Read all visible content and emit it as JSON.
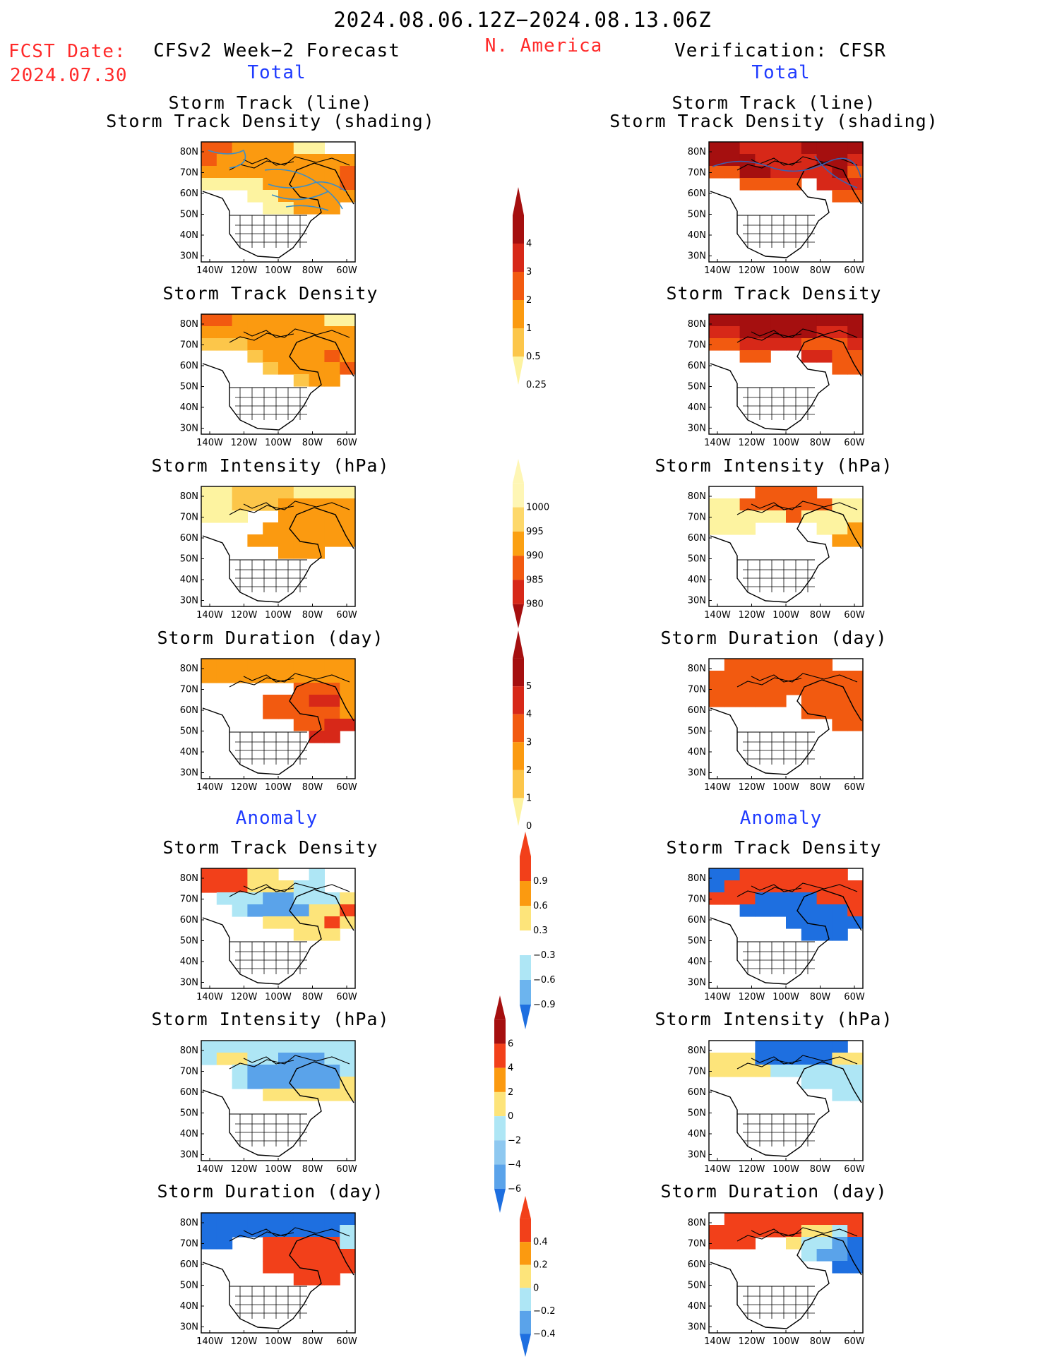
{
  "header": {
    "date_range": "2024.08.06.12Z−2024.08.13.06Z",
    "fcst_label": "FCST Date:",
    "fcst_date": "2024.07.30",
    "forecast_title": "CFSv2 Week−2 Forecast",
    "region": "N. America",
    "verification_title": "Verification: CFSR"
  },
  "sections": {
    "total": "Total",
    "anomaly": "Anomaly"
  },
  "panel_titles": {
    "track_line": "Storm Track (line)",
    "track_shading": "Storm Track Density (shading)",
    "density": "Storm Track Density",
    "intensity": "Storm Intensity (hPa)",
    "duration": "Storm Duration (day)"
  },
  "axes": {
    "lat_labels": [
      "80N",
      "70N",
      "60N",
      "50N",
      "40N",
      "30N"
    ],
    "lon_labels": [
      "140W",
      "120W",
      "100W",
      "80W",
      "60W"
    ]
  },
  "chart_data": {
    "type": "heatmap",
    "colorbars": [
      {
        "id": "density_total",
        "labels": [
          "4",
          "3",
          "2",
          "1",
          "0.5",
          "0.25"
        ],
        "colors": [
          "#a50f0f",
          "#d72818",
          "#f25a10",
          "#fb9a10",
          "#fcc64a",
          "#fdf3a0"
        ]
      },
      {
        "id": "intensity_total",
        "labels": [
          "1000",
          "995",
          "990",
          "985",
          "980"
        ],
        "colors": [
          "#fef6b5",
          "#fdd86a",
          "#fba012",
          "#f25a10",
          "#d72818",
          "#a50f0f"
        ]
      },
      {
        "id": "duration_total",
        "labels": [
          "5",
          "4",
          "3",
          "2",
          "1",
          "0"
        ],
        "colors": [
          "#a50f0f",
          "#d72818",
          "#f25a10",
          "#fb9a10",
          "#fcc64a",
          "#fdf3a0"
        ]
      },
      {
        "id": "density_anom",
        "labels": [
          "0.9",
          "0.6",
          "0.3",
          "−0.3",
          "−0.6",
          "−0.9"
        ],
        "colors": [
          "#f2401a",
          "#fb9a10",
          "#fde47a",
          "#ffffff",
          "#aee6f5",
          "#6cb4ee",
          "#1e6fe0"
        ]
      },
      {
        "id": "intensity_anom",
        "labels": [
          "6",
          "4",
          "2",
          "0",
          "−2",
          "−4",
          "−6"
        ],
        "colors": [
          "#a50f0f",
          "#f2401a",
          "#fb9a10",
          "#fde47a",
          "#aee6f5",
          "#8ec8f0",
          "#5aa3ea",
          "#1e6fe0"
        ]
      },
      {
        "id": "duration_anom",
        "labels": [
          "0.4",
          "0.2",
          "0",
          "−0.2",
          "−0.4"
        ],
        "colors": [
          "#f2401a",
          "#fb9a10",
          "#fde47a",
          "#aee6f5",
          "#5aa3ea",
          "#1e6fe0"
        ]
      }
    ]
  }
}
